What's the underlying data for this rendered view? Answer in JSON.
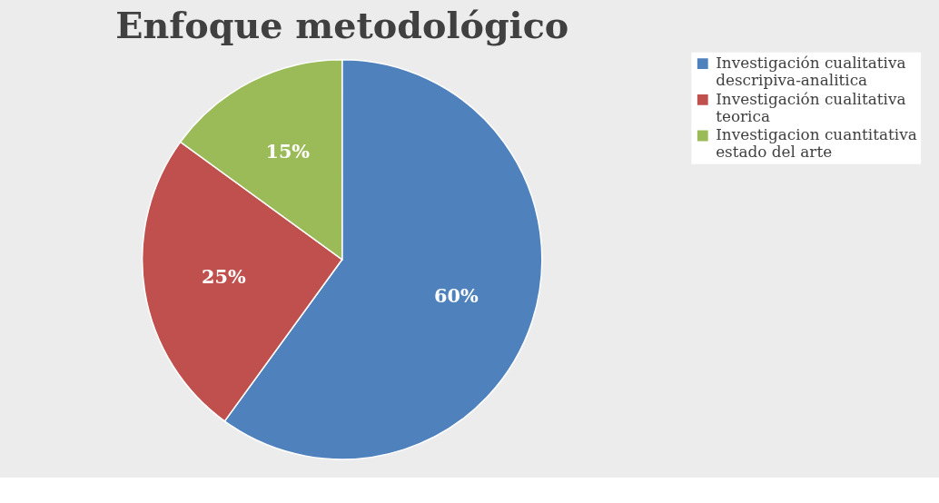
{
  "chart_data": {
    "type": "pie",
    "title": "Enfoque metodológico",
    "categories": [
      "Investigación cualitativa descripiva-analitica",
      "Investigación cualitativa teorica",
      "Investigacion cuantitativa estado del arte"
    ],
    "values": [
      60,
      25,
      15
    ],
    "colors": [
      "#4f81bd",
      "#c0504d",
      "#9bbb59"
    ],
    "value_labels": [
      "60%",
      "25%",
      "15%"
    ],
    "legend": "right"
  }
}
